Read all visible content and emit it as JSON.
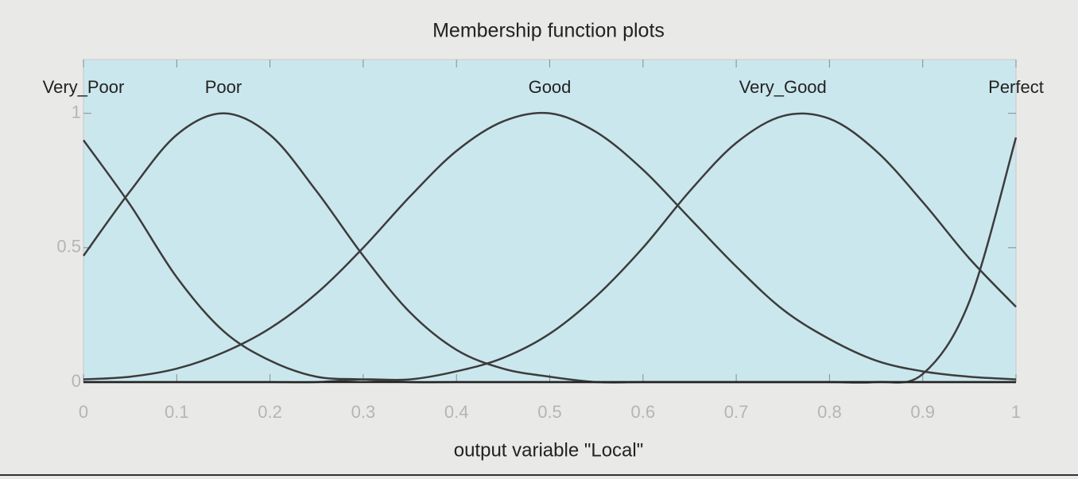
{
  "chart_data": {
    "type": "line",
    "title": "Membership function plots",
    "x_label": "output variable \"Local\"",
    "x": [
      0,
      0.05,
      0.1,
      0.15,
      0.2,
      0.25,
      0.3,
      0.35,
      0.4,
      0.45,
      0.5,
      0.55,
      0.6,
      0.65,
      0.7,
      0.75,
      0.8,
      0.85,
      0.9,
      0.95,
      1
    ],
    "series": [
      {
        "name": "Very_Poor",
        "color": "#3c3c3c",
        "values": [
          0.9,
          0.66,
          0.39,
          0.19,
          0.08,
          0.02,
          0.01,
          0,
          0,
          0,
          0,
          0,
          0,
          0,
          0,
          0,
          0,
          0,
          0,
          0,
          0
        ]
      },
      {
        "name": "Poor",
        "color": "#3c3c3c",
        "values": [
          0.47,
          0.71,
          0.92,
          1,
          0.92,
          0.71,
          0.47,
          0.26,
          0.12,
          0.05,
          0.02,
          0,
          0,
          0,
          0,
          0,
          0,
          0,
          0,
          0,
          0
        ]
      },
      {
        "name": "Good",
        "color": "#3c3c3c",
        "values": [
          0.01,
          0.02,
          0.05,
          0.11,
          0.2,
          0.33,
          0.5,
          0.69,
          0.86,
          0.97,
          1,
          0.93,
          0.79,
          0.61,
          0.43,
          0.27,
          0.16,
          0.08,
          0.04,
          0.02,
          0.01
        ]
      },
      {
        "name": "Very_Good",
        "color": "#3c3c3c",
        "values": [
          0,
          0,
          0,
          0,
          0,
          0,
          0.01,
          0.01,
          0.04,
          0.09,
          0.18,
          0.32,
          0.5,
          0.71,
          0.89,
          0.99,
          0.98,
          0.86,
          0.67,
          0.46,
          0.28
        ]
      },
      {
        "name": "Perfect",
        "color": "#3c3c3c",
        "values": [
          0,
          0,
          0,
          0,
          0,
          0,
          0,
          0,
          0,
          0,
          0,
          0,
          0,
          0,
          0,
          0,
          0,
          0,
          0.03,
          0.3,
          0.91
        ]
      }
    ],
    "xlim": [
      0,
      1
    ],
    "ylim": [
      0,
      1.2
    ],
    "xticks": [
      0,
      0.1,
      0.2,
      0.3,
      0.4,
      0.5,
      0.6,
      0.7,
      0.8,
      0.9,
      1
    ],
    "yticks": [
      0,
      0.5,
      1
    ],
    "plot_background": "#cbe7ee",
    "grid": false
  }
}
